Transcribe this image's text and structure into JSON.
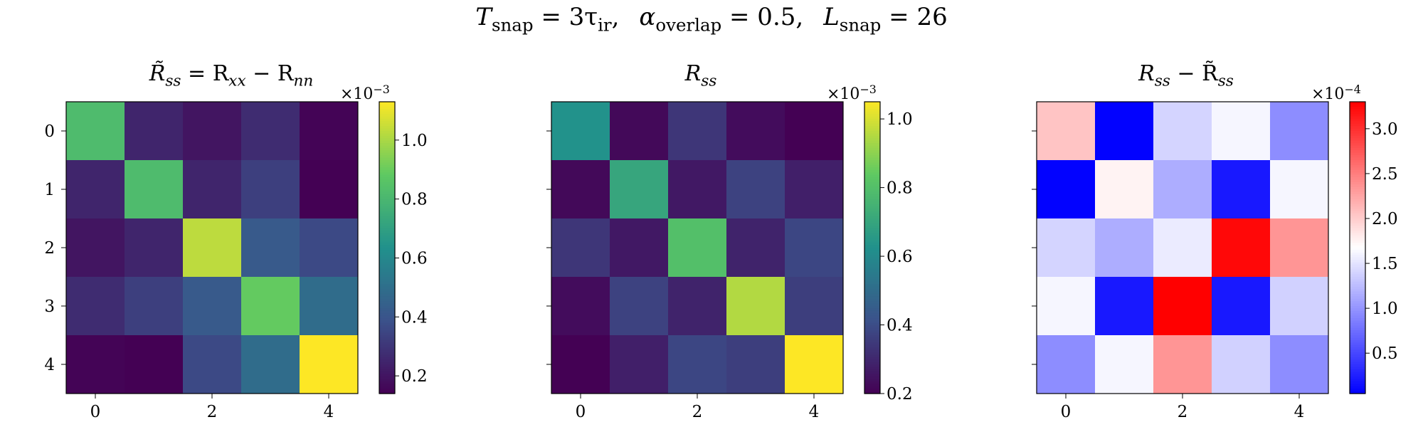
{
  "suptitle": {
    "t_sym": "T",
    "t_sub": "snap",
    "t_eq": " = 3τ",
    "t_tau_sub": "ir",
    "t_end": ",",
    "a_sym": "α",
    "a_sub": "overlap",
    "a_eq": " = 0.5,",
    "l_sym": "L",
    "l_sub": "snap",
    "l_eq": " = 26"
  },
  "panels": {
    "p0": {
      "title_tex": "R̃ₛₛ = Rₓₓ − Rₙₙ",
      "title_main": "R̃",
      "title_s1": "ss",
      "title_eq": " = R",
      "title_s2": "xx",
      "title_minus": " − R",
      "title_s3": "nn",
      "mult_base": "×10",
      "mult_exp": "−3"
    },
    "p1": {
      "title_main": "R",
      "title_s1": "ss",
      "mult_base": "×10",
      "mult_exp": "−3"
    },
    "p2": {
      "title_main": "R",
      "title_s1": "ss",
      "title_minus": " − R̃",
      "title_s2": "ss",
      "mult_base": "×10",
      "mult_exp": "−4"
    }
  },
  "chart_data": [
    {
      "type": "heatmap",
      "title": "R̃_ss = R_xx − R_nn",
      "colormap": "viridis",
      "x_ticks": [
        "0",
        "2",
        "4"
      ],
      "y_ticks": [
        "0",
        "1",
        "2",
        "3",
        "4"
      ],
      "scale_multiplier": "1e-3",
      "vmin": 0.14,
      "vmax": 1.13,
      "colorbar_ticks": [
        "0.2",
        "0.4",
        "0.6",
        "0.8",
        "1.0"
      ],
      "matrix": [
        [
          0.82,
          0.25,
          0.2,
          0.27,
          0.15
        ],
        [
          0.25,
          0.82,
          0.25,
          0.33,
          0.14
        ],
        [
          0.2,
          0.25,
          1.03,
          0.42,
          0.36
        ],
        [
          0.27,
          0.33,
          0.42,
          0.89,
          0.49
        ],
        [
          0.15,
          0.14,
          0.36,
          0.49,
          1.13
        ]
      ]
    },
    {
      "type": "heatmap",
      "title": "R_ss",
      "colormap": "viridis",
      "x_ticks": [
        "0",
        "2",
        "4"
      ],
      "y_ticks": [],
      "scale_multiplier": "1e-3",
      "vmin": 0.2,
      "vmax": 1.05,
      "colorbar_ticks": [
        "0.2",
        "0.4",
        "0.6",
        "0.8",
        "1.0"
      ],
      "matrix": [
        [
          0.63,
          0.22,
          0.34,
          0.23,
          0.2
        ],
        [
          0.22,
          0.7,
          0.26,
          0.37,
          0.28
        ],
        [
          0.34,
          0.26,
          0.8,
          0.29,
          0.38
        ],
        [
          0.23,
          0.37,
          0.29,
          0.95,
          0.36
        ],
        [
          0.2,
          0.28,
          0.38,
          0.36,
          1.05
        ]
      ]
    },
    {
      "type": "heatmap",
      "title": "R_ss − R̃_ss",
      "colormap": "bwr",
      "x_ticks": [
        "0",
        "2",
        "4"
      ],
      "y_ticks": [],
      "scale_multiplier": "1e-4",
      "vmin": 0.05,
      "vmax": 3.3,
      "colorbar_ticks": [
        "0.5",
        "1.0",
        "1.5",
        "2.0",
        "2.5",
        "3.0"
      ],
      "matrix": [
        [
          2.05,
          0.06,
          1.4,
          1.62,
          0.95
        ],
        [
          0.06,
          1.75,
          1.15,
          0.2,
          1.62
        ],
        [
          1.4,
          1.15,
          1.55,
          3.25,
          2.35
        ],
        [
          1.62,
          0.2,
          3.3,
          0.2,
          1.38
        ],
        [
          0.95,
          1.62,
          2.35,
          1.38,
          0.95
        ]
      ]
    }
  ]
}
